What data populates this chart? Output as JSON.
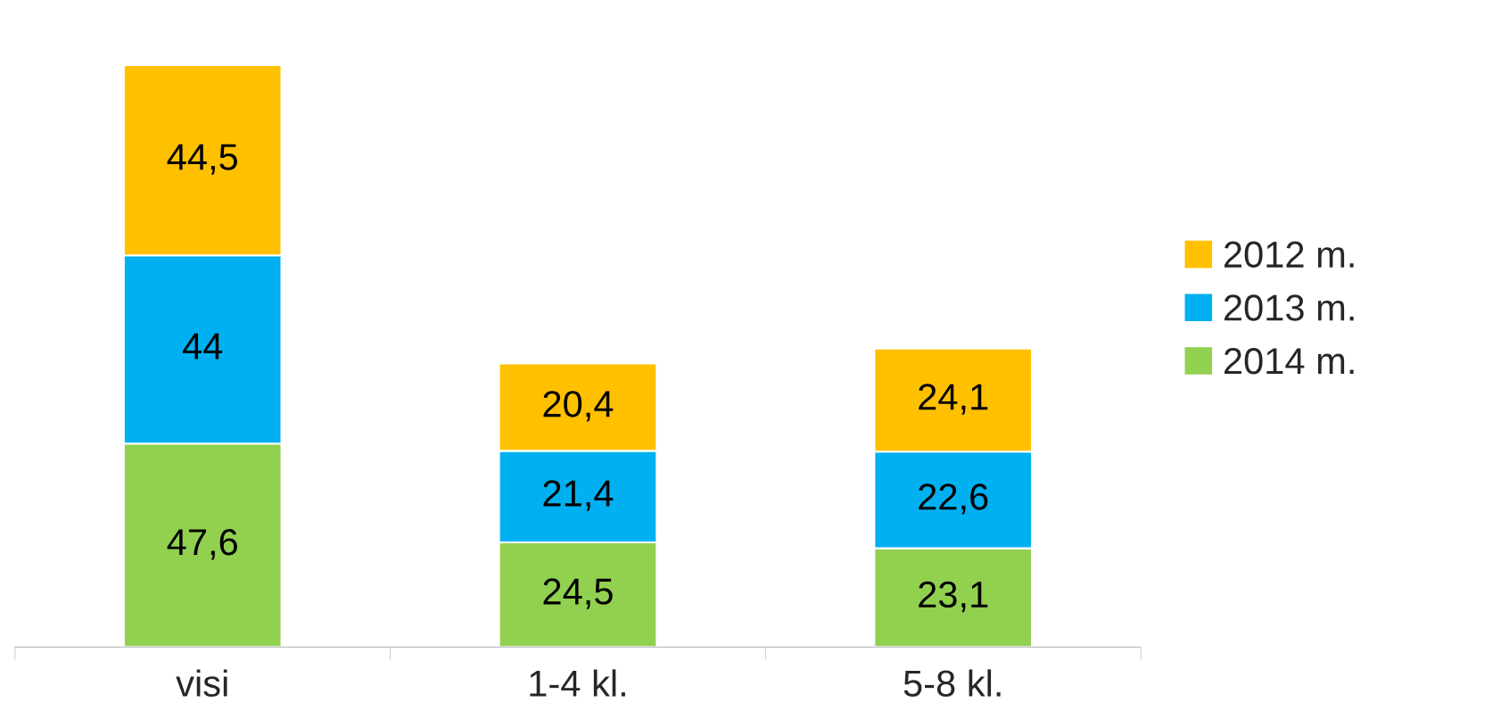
{
  "chart_data": {
    "type": "bar",
    "stacked": true,
    "legend": "right",
    "categories": [
      "visi",
      "1-4 kl.",
      "5-8 kl."
    ],
    "series": [
      {
        "name": "2014 m.",
        "color": "#92d050",
        "values": [
          47.6,
          24.5,
          23.1
        ],
        "value_labels": [
          "47,6",
          "24,5",
          "23,1"
        ]
      },
      {
        "name": "2013 m.",
        "color": "#00b0f0",
        "values": [
          44,
          21.4,
          22.6
        ],
        "value_labels": [
          "44",
          "21,4",
          "22,6"
        ]
      },
      {
        "name": "2012 m.",
        "color": "#ffc000",
        "values": [
          44.5,
          20.4,
          24.1
        ],
        "value_labels": [
          "44,5",
          "20,4",
          "24,1"
        ]
      }
    ]
  }
}
